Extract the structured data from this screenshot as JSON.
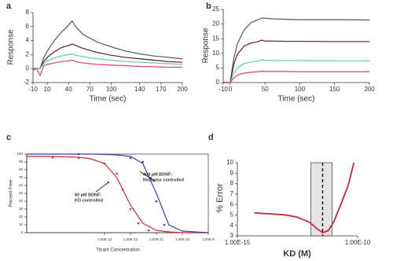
{
  "chart_data": [
    {
      "type": "line",
      "panel_label": "a",
      "x_label": "Time (sec)",
      "y_label": "Response",
      "x": [
        -10,
        -5,
        0,
        5,
        10,
        20,
        30,
        40,
        45,
        50,
        60,
        80,
        100,
        120,
        140,
        160,
        180,
        200
      ],
      "xlim": [
        -10,
        200
      ],
      "xticks": [
        -10,
        10,
        40,
        70,
        100,
        140,
        170,
        200
      ],
      "ylim": [
        -2,
        8
      ],
      "yticks": [
        -2,
        0,
        2,
        4,
        6,
        8
      ],
      "series": [
        {
          "color": "#555555",
          "values": [
            -0.2,
            0,
            0,
            1.5,
            2.5,
            4,
            5.2,
            6.2,
            6.8,
            6,
            4.9,
            3.8,
            3.1,
            2.5,
            2.1,
            1.8,
            1.6,
            1.4
          ]
        },
        {
          "color": "#5a1a3a",
          "values": [
            0,
            0,
            0,
            1,
            1.6,
            2.4,
            3,
            3.3,
            3.5,
            3.3,
            2.9,
            2.3,
            1.9,
            1.6,
            1.4,
            1.2,
            1,
            0.9
          ]
        },
        {
          "color": "#5fcf9f",
          "values": [
            0,
            0,
            0,
            0.7,
            1.1,
            1.5,
            1.8,
            2,
            2.1,
            1.9,
            1.7,
            1.4,
            1.2,
            1,
            0.9,
            0.8,
            0.7,
            0.6
          ]
        },
        {
          "color": "#d9407a",
          "values": [
            0,
            0,
            -1,
            0.4,
            0.6,
            0.8,
            1,
            1.1,
            1.2,
            1,
            0.8,
            0.6,
            0.5,
            0.4,
            0.3,
            0.25,
            0.2,
            0.2
          ]
        }
      ]
    },
    {
      "type": "line",
      "panel_label": "b",
      "x_label": "Time (sec)",
      "y_label": "Response",
      "x": [
        -10,
        0,
        5,
        10,
        20,
        30,
        40,
        45,
        50,
        60,
        80,
        100,
        150,
        200
      ],
      "xlim": [
        -10,
        200
      ],
      "xticks": [
        -10,
        0,
        50,
        100,
        150,
        200
      ],
      "ylim": [
        0,
        25
      ],
      "yticks": [
        0,
        5,
        10,
        15,
        20,
        25
      ],
      "series": [
        {
          "color": "#555555",
          "values": [
            0,
            0,
            8,
            13,
            18,
            20.5,
            21.5,
            22,
            22,
            21.8,
            21.6,
            21.5,
            21.5,
            21.4
          ]
        },
        {
          "color": "#5a1a3a",
          "values": [
            0,
            0,
            6,
            9.5,
            12.5,
            13.5,
            14,
            14.5,
            14.2,
            14.2,
            14.1,
            14.1,
            14,
            14
          ]
        },
        {
          "color": "#5fcf9f",
          "values": [
            0,
            0,
            3,
            5,
            6.5,
            7,
            7.3,
            7.8,
            7.6,
            7.5,
            7.5,
            7.5,
            7.4,
            7.4
          ]
        },
        {
          "color": "#d9407a",
          "values": [
            0,
            0,
            1.5,
            2.5,
            3.2,
            3.5,
            3.7,
            3.9,
            3.8,
            3.8,
            3.8,
            3.7,
            3.7,
            3.7
          ]
        }
      ]
    },
    {
      "type": "line",
      "panel_label": "c",
      "x_label": "Titrant Concentration",
      "y_label": "Percent Free",
      "xscale": "log",
      "xlim": [
        1e-16,
        1e-09
      ],
      "xticks": [
        {
          "value": 1e-13,
          "label": "1.00E-13"
        },
        {
          "value": 1e-12,
          "label": "1.00E-12"
        },
        {
          "value": 1e-11,
          "label": "1.00E-11"
        },
        {
          "value": 1e-10,
          "label": "1.00E-10"
        },
        {
          "value": 1e-09,
          "label": "1.00E-9"
        }
      ],
      "ylim": [
        0,
        100
      ],
      "yticks": [
        0,
        10,
        20,
        30,
        40,
        50,
        60,
        70,
        80,
        90,
        100
      ],
      "series": [
        {
          "type": "line",
          "color": "#d0253a",
          "x": [
            1e-16,
            1e-15,
            1e-14,
            3e-14,
            1e-13,
            3e-13,
            1e-12,
            3e-12,
            1e-11,
            3e-11,
            1e-10,
            1e-09
          ],
          "values": [
            97,
            97,
            96,
            94,
            88,
            70,
            35,
            12,
            3,
            1,
            0,
            0
          ]
        },
        {
          "type": "line",
          "color": "#3a3fa0",
          "x": [
            1e-16,
            1e-15,
            1e-14,
            3e-14,
            1e-13,
            3e-13,
            1e-12,
            3e-12,
            1e-11,
            3e-11,
            1e-10,
            1e-09
          ],
          "values": [
            100,
            100,
            100,
            100,
            99.5,
            99,
            97,
            88,
            50,
            10,
            2,
            0
          ]
        },
        {
          "type": "scatter",
          "color": "#d0253a",
          "x": [
            1e-15,
            1e-14,
            1e-13,
            3e-13,
            5e-13,
            1e-12,
            2e-12,
            5e-12
          ],
          "values": [
            96,
            95,
            88,
            75,
            55,
            30,
            12,
            3
          ]
        },
        {
          "type": "scatter",
          "color": "#3a3fa0",
          "x": [
            1e-14,
            1e-12,
            3e-12,
            6e-12,
            1e-11,
            2e-11
          ],
          "values": [
            100,
            95,
            90,
            70,
            40,
            10
          ]
        }
      ],
      "annotations": [
        {
          "text": [
            "400 pM  BDNF:",
            "Receptor controlled"
          ]
        },
        {
          "text": [
            "60 pM  BDNF:",
            "KD controlled"
          ]
        }
      ]
    },
    {
      "type": "line",
      "panel_label": "d",
      "x_label": "KD (M)",
      "y_label": "% Error",
      "xscale": "log",
      "xlim": [
        1e-15,
        1e-10
      ],
      "xticks": [
        {
          "value": 1e-15,
          "label": "1.00E-15"
        },
        {
          "value": 1e-10,
          "label": "1.00E-10"
        }
      ],
      "ylim": [
        3,
        10
      ],
      "yticks": [
        3,
        4,
        5,
        6,
        7,
        8,
        9,
        10
      ],
      "shaded_region": [
        1.15e-12,
        8.7e-12
      ],
      "marker_x": 3.5e-12,
      "series": [
        {
          "type": "line",
          "color": "#d0253a",
          "x": [
            5e-15,
            1e-14,
            3e-14,
            1e-13,
            3e-13,
            1e-12,
            2e-12,
            3.5e-12,
            6e-12,
            1e-11,
            2e-11,
            4e-11,
            7e-11
          ],
          "values": [
            5.2,
            5.15,
            5.1,
            5,
            4.8,
            4.3,
            3.7,
            3.3,
            3.5,
            4.3,
            6,
            7.8,
            10
          ]
        }
      ]
    }
  ]
}
